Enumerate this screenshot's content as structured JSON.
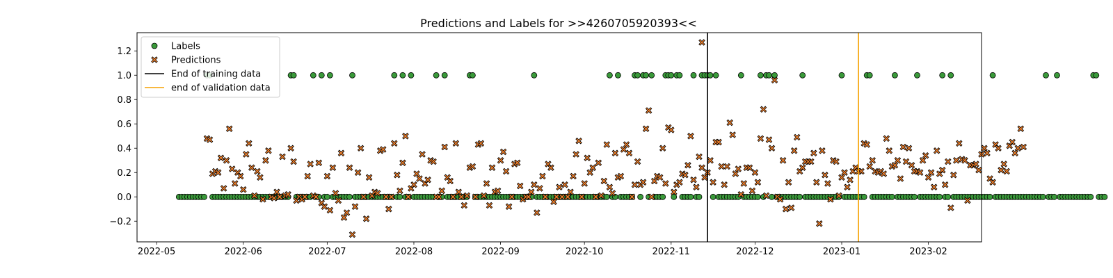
{
  "chart_data": {
    "type": "scatter",
    "title": "Predictions and Labels for >>4260705920393<<",
    "xlabel": "",
    "ylabel": "",
    "x_range": [
      "2022-04-24",
      "2023-02-20"
    ],
    "ylim": [
      -0.37,
      1.35
    ],
    "x_ticks": [
      "2022-05",
      "2022-06",
      "2022-07",
      "2022-08",
      "2022-09",
      "2022-10",
      "2022-11",
      "2022-12",
      "2023-01",
      "2023-02"
    ],
    "x_tick_dates": [
      "2022-05-01",
      "2022-06-01",
      "2022-07-01",
      "2022-08-01",
      "2022-09-01",
      "2022-10-01",
      "2022-11-01",
      "2022-12-01",
      "2023-01-01",
      "2023-02-01"
    ],
    "y_ticks": [
      "−0.2",
      "0.0",
      "0.2",
      "0.4",
      "0.6",
      "0.8",
      "1.0",
      "1.2"
    ],
    "y_tick_values": [
      -0.2,
      0.0,
      0.2,
      0.4,
      0.6,
      0.8,
      1.0,
      1.2
    ],
    "grid": false,
    "legend_placement": "top-left",
    "legend": [
      "Labels",
      "Predictions",
      "End of training data",
      "end of validation data"
    ],
    "series": [
      {
        "name": "Labels",
        "marker": "circle",
        "color": "#3a9a3a",
        "edge_color": "#000000",
        "start_date": "2022-05-09",
        "values": [
          0,
          0,
          0,
          0,
          0,
          0,
          0,
          0,
          0,
          0,
          1,
          1,
          0,
          0,
          0,
          0,
          0,
          0,
          0,
          0,
          0,
          0,
          0,
          0,
          0,
          0,
          0,
          0,
          0,
          0,
          0,
          0,
          0,
          0,
          0,
          0,
          0,
          0,
          0,
          0,
          1,
          1,
          0,
          0,
          0,
          0,
          0,
          0,
          1,
          0,
          0,
          1,
          0,
          0,
          1,
          0,
          0,
          0,
          0,
          0,
          0,
          0,
          1,
          0,
          0,
          0,
          0,
          0,
          0,
          0,
          0,
          0,
          0,
          0,
          0,
          0,
          0,
          1,
          0,
          0,
          1,
          0,
          0,
          1,
          0,
          0,
          0,
          0,
          0,
          0,
          0,
          0,
          1,
          0,
          0,
          1,
          0,
          0,
          0,
          0,
          0,
          0,
          0,
          0,
          1,
          1,
          0,
          0,
          0,
          0,
          0,
          0,
          0,
          0,
          0,
          0,
          0,
          0,
          0,
          0,
          0,
          0,
          0,
          0,
          0,
          0,
          0,
          1,
          0,
          0,
          0,
          0,
          0,
          0,
          0,
          0,
          0,
          0,
          0,
          0,
          0,
          0,
          0,
          0,
          0,
          0,
          0,
          0,
          0,
          0,
          0,
          0,
          0,
          0,
          1,
          0,
          0,
          1,
          0,
          0,
          0,
          0,
          0,
          1,
          1,
          0,
          1,
          1,
          0,
          1,
          0,
          0,
          0,
          0,
          1,
          1,
          1,
          0,
          1,
          1,
          0,
          0,
          0,
          0,
          1,
          0,
          0,
          1,
          1,
          1,
          1,
          0,
          1,
          0,
          0,
          0,
          0,
          0,
          0,
          0,
          0,
          1,
          0,
          0,
          0,
          0,
          0,
          0,
          1,
          0,
          1,
          1,
          0,
          1,
          0,
          0,
          0,
          0,
          0,
          0,
          0,
          0,
          0,
          1,
          0,
          0,
          0,
          0,
          0,
          0,
          0,
          0,
          0,
          0,
          0,
          0,
          0,
          1,
          0,
          0,
          0,
          0,
          0,
          0,
          0,
          0,
          1,
          1,
          0,
          0,
          0,
          0,
          0,
          0,
          0,
          0,
          1,
          0,
          0,
          0,
          0,
          0,
          0,
          0,
          1,
          0,
          0,
          0,
          0,
          0,
          0,
          0,
          0,
          1,
          0,
          0,
          1,
          0,
          0,
          0,
          0,
          0,
          0,
          0,
          0,
          0,
          0,
          0,
          0,
          0,
          0,
          1,
          0,
          0,
          0,
          0,
          0,
          0,
          0,
          0,
          0,
          0,
          0,
          0,
          0,
          0,
          0,
          0,
          0,
          0,
          1,
          0,
          0,
          0,
          1,
          0,
          0,
          0,
          0,
          0,
          0,
          0,
          0,
          0,
          0,
          0,
          0,
          1,
          1,
          0,
          0,
          0
        ]
      },
      {
        "name": "Predictions",
        "marker": "x",
        "color": "#f07f2a",
        "edge_color": "#000000",
        "start_date": "2022-05-19",
        "values": [
          0.48,
          0.47,
          0.19,
          0.21,
          0.2,
          0.32,
          0.07,
          0.3,
          0.56,
          0.23,
          0.11,
          0.2,
          0.17,
          0.06,
          0.35,
          0.44,
          0.24,
          0.01,
          0.21,
          0.16,
          -0.02,
          0.3,
          0.38,
          0.0,
          -0.01,
          0.04,
          0.0,
          0.33,
          0.01,
          0.02,
          0.4,
          0.29,
          -0.03,
          0.0,
          -0.02,
          0.0,
          0.17,
          0.27,
          0.01,
          0.0,
          0.28,
          -0.05,
          -0.08,
          0.17,
          -0.11,
          0.24,
          0.03,
          -0.03,
          0.36,
          -0.17,
          -0.13,
          0.24,
          -0.31,
          -0.08,
          0.2,
          0.4,
          0.0,
          -0.18,
          0.16,
          0.01,
          0.04,
          0.03,
          0.38,
          0.39,
          0.0,
          -0.1,
          0.0,
          0.44,
          0.18,
          0.05,
          0.28,
          0.5,
          0.0,
          0.07,
          0.1,
          0.19,
          0.15,
          0.35,
          0.11,
          0.14,
          0.3,
          0.29,
          0.0,
          0.0,
          0.05,
          0.41,
          0.16,
          0.13,
          0.0,
          0.44,
          0.04,
          0.0,
          -0.07,
          0.01,
          0.24,
          0.25,
          0.0,
          0.43,
          0.44,
          0.01,
          0.11,
          -0.07,
          0.24,
          0.04,
          0.05,
          0.3,
          0.37,
          0.21,
          -0.08,
          0.0,
          0.27,
          0.28,
          0.09,
          -0.02,
          0.0,
          0.0,
          0.04,
          0.1,
          -0.13,
          0.07,
          0.17,
          0.0,
          0.27,
          0.24,
          -0.04,
          0.0,
          0.08,
          0.0,
          0.1,
          0.0,
          0.04,
          0.17,
          0.35,
          0.46,
          0.0,
          0.11,
          0.32,
          0.2,
          0.24,
          0.0,
          0.28,
          0.01,
          0.13,
          0.43,
          0.08,
          0.03,
          0.36,
          0.16,
          0.17,
          0.39,
          0.43,
          0.36,
          0.0,
          0.1,
          0.29,
          0.1,
          0.12,
          0.56,
          0.71,
          0.0,
          0.13,
          0.17,
          0.16,
          0.4,
          0.11,
          0.57,
          0.55,
          0.04,
          0.1,
          0.12,
          0.19,
          0.18,
          0.26,
          0.5,
          0.14,
          0.08,
          0.33,
          0.24,
          0.16,
          0.2,
          0.3,
          0.12,
          0.45,
          0.45,
          0.25,
          0.1,
          0.25,
          0.61,
          0.51,
          0.19,
          0.23,
          0.02,
          0.11,
          0.24,
          0.24,
          0.05,
          0.2,
          0.12,
          0.48,
          0.72,
          0.01,
          0.47,
          0.4,
          0.96,
          0.0,
          -0.02,
          0.3,
          -0.1,
          0.12,
          -0.09,
          0.38,
          0.49,
          0.21,
          0.24,
          0.29,
          0.29,
          0.29,
          0.36,
          0.12,
          -0.22,
          0.38,
          0.18,
          0.11,
          -0.02,
          0.3,
          0.29,
          0.01,
          0.16,
          0.2,
          0.08,
          0.14,
          0.21,
          0.24,
          0.21,
          0.21,
          0.44,
          0.43,
          0.25,
          0.3,
          0.21,
          0.2,
          0.21,
          0.19,
          0.48,
          0.38,
          0.25,
          0.26,
          0.3,
          0.15,
          0.41,
          0.29,
          0.4,
          0.26,
          0.21,
          0.21,
          0.2,
          0.3,
          0.34,
          0.16,
          0.2,
          0.08,
          0.38,
          0.19,
          0.22,
          0.1,
          0.29,
          -0.09,
          0.18,
          0.3,
          0.44,
          0.31,
          0.3,
          -0.03,
          0.26,
          0.26,
          0.27,
          0.22,
          0.35,
          0.4,
          0.36,
          0.15,
          0.12,
          0.43,
          0.4,
          0.22,
          0.27,
          0.21,
          0.42,
          0.45,
          0.36,
          0.4,
          0.56,
          0.41
        ]
      }
    ],
    "outlier_points": [
      {
        "x": "2022-11-12",
        "y": 1.27
      }
    ],
    "vertical_lines": [
      {
        "name": "End of training data",
        "x": "2022-11-14",
        "color": "#000000"
      },
      {
        "name": "end of validation data",
        "x": "2023-01-07",
        "color": "#f5a100"
      }
    ]
  }
}
